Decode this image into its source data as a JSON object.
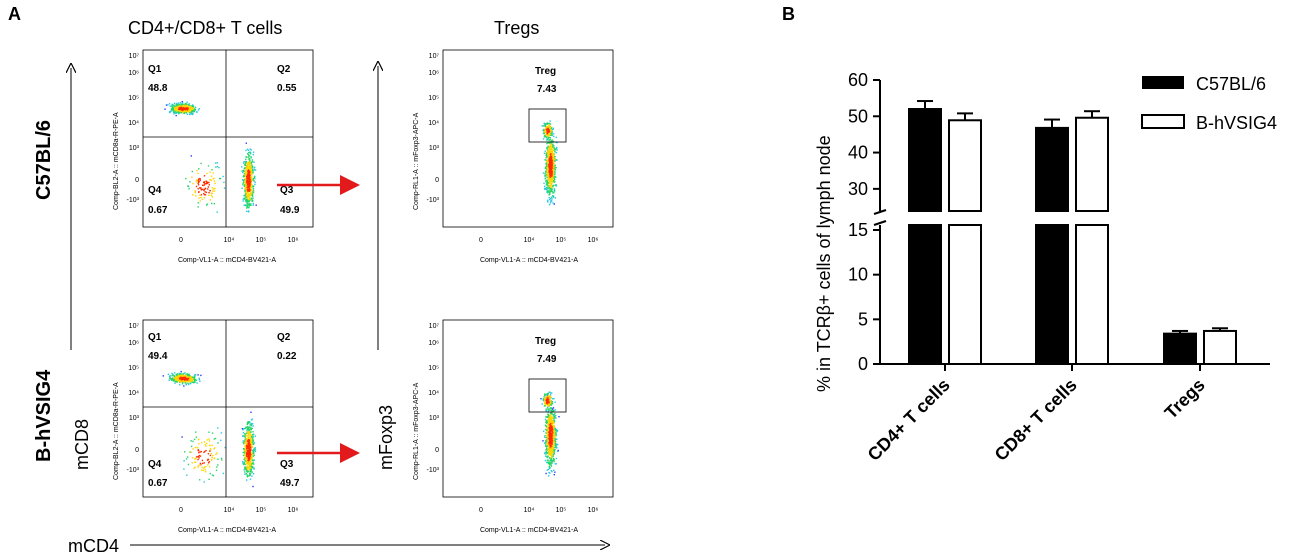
{
  "panel_a": {
    "letter": "A",
    "col_titles": [
      "CD4+/CD8+ T cells",
      "Tregs"
    ],
    "row_labels": [
      "C57BL/6",
      "B-hVSIG4"
    ],
    "y_axis_outer": "mCD8",
    "y_axis_outer2": "mFoxp3",
    "x_axis_outer": "mCD4",
    "quadrant_plots": [
      {
        "quadrants": [
          {
            "name": "Q1",
            "value": "48.8"
          },
          {
            "name": "Q2",
            "value": "0.55"
          },
          {
            "name": "Q4",
            "value": "0.67"
          },
          {
            "name": "Q3",
            "value": "49.9"
          }
        ],
        "y_channel": "Comp-BL2-A :: mCD8a-R-PE-A",
        "x_channel": "Comp-VL1-A :: mCD4-BV421-A"
      },
      {
        "quadrants": [
          {
            "name": "Q1",
            "value": "49.4"
          },
          {
            "name": "Q2",
            "value": "0.22"
          },
          {
            "name": "Q4",
            "value": "0.67"
          },
          {
            "name": "Q3",
            "value": "49.7"
          }
        ],
        "y_channel": "Comp-BL2-A :: mCD8a-R-PE-A",
        "x_channel": "Comp-VL1-A :: mCD4-BV421-A"
      }
    ],
    "treg_plots": [
      {
        "gate_name": "Treg",
        "value": "7.43",
        "y_channel": "Comp-RL1-A :: mFoxp3-APC-A",
        "x_channel": "Comp-VL1-A :: mCD4-BV421-A"
      },
      {
        "gate_name": "Treg",
        "value": "7.49",
        "y_channel": "Comp-RL1-A :: mFoxp3-APC-A",
        "x_channel": "Comp-VL1-A :: mCD4-BV421-A"
      }
    ],
    "y_ticks": [
      "10⁷",
      "10⁶",
      "10⁵",
      "10⁴",
      "10³",
      "0",
      "-10³"
    ],
    "x_ticks": [
      "0",
      "10⁴",
      "10⁵",
      "10⁶"
    ],
    "arrow_color": "#e31a1c"
  },
  "panel_b": {
    "letter": "B",
    "chart_data": {
      "type": "bar",
      "categories": [
        "CD4+ T cells",
        "CD8+ T cells",
        "Tregs"
      ],
      "series": [
        {
          "name": "C57BL/6",
          "values": [
            52.0,
            46.8,
            3.4
          ],
          "errors": [
            2.2,
            2.3,
            0.3
          ],
          "fill": "#000000"
        },
        {
          "name": "B-hVSIG4",
          "values": [
            48.9,
            49.6,
            3.7
          ],
          "errors": [
            1.9,
            1.8,
            0.3
          ],
          "fill": "#ffffff"
        }
      ],
      "ylabel": "% in TCRβ+ cells of lymph node",
      "y_ticks_upper": [
        "30",
        "40",
        "50",
        "60"
      ],
      "y_ticks_lower": [
        "0",
        "5",
        "10",
        "15"
      ],
      "axis_break": true,
      "legend_position": "top-right"
    }
  }
}
